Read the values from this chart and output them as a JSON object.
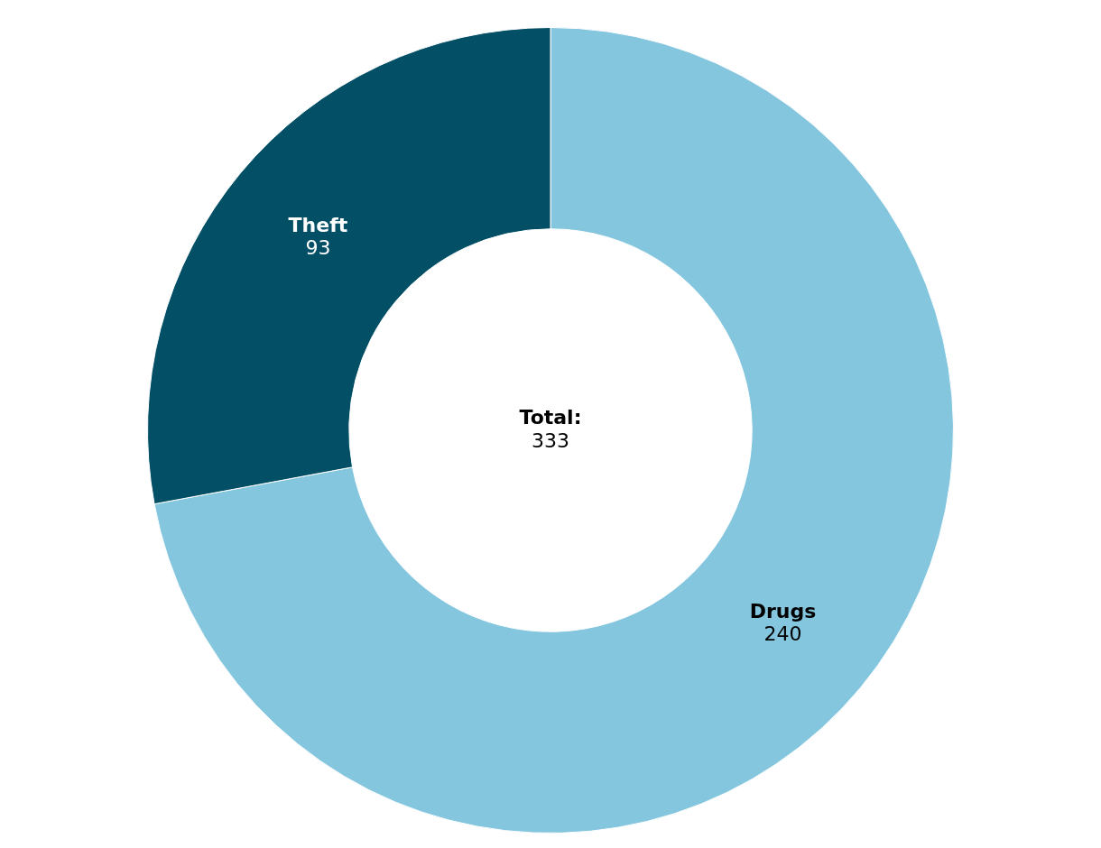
{
  "chart_data": {
    "type": "donut",
    "categories": [
      "Drugs",
      "Theft"
    ],
    "values": [
      240,
      93
    ],
    "colors": [
      "#85c6df",
      "#034f66"
    ],
    "data_labels": true,
    "legend": false,
    "annotations": [
      "Total:",
      "333"
    ]
  }
}
